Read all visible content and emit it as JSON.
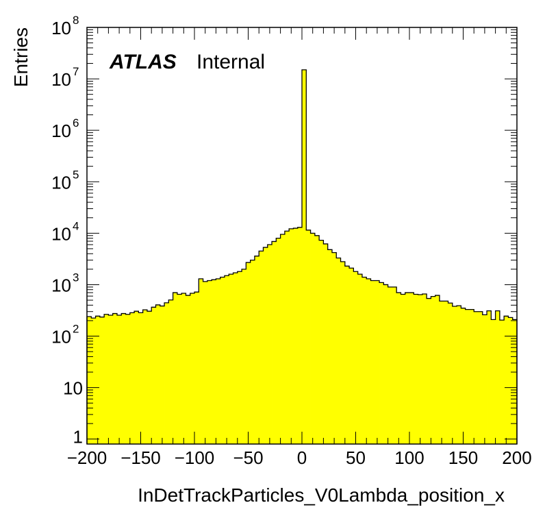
{
  "chart_data": {
    "type": "bar",
    "style": "histogram",
    "xlabel": "InDetTrackParticles_V0Lambda_position_x",
    "ylabel": "Entries",
    "label_bold": "ATLAS",
    "label_status": "Internal",
    "xlim": [
      -200,
      200
    ],
    "ylim": [
      0.8,
      100000000
    ],
    "y_scale": "log",
    "grid": false,
    "fill_color": "#ffff00",
    "line_color": "#000000",
    "x_ticks": [
      "−200",
      "−150",
      "−100",
      "−50",
      "0",
      "50",
      "100",
      "150",
      "200"
    ],
    "y_ticks": [
      {
        "base": "1",
        "exp": ""
      },
      {
        "base": "10",
        "exp": ""
      },
      {
        "base": "10",
        "exp": "2"
      },
      {
        "base": "10",
        "exp": "3"
      },
      {
        "base": "10",
        "exp": "4"
      },
      {
        "base": "10",
        "exp": "5"
      },
      {
        "base": "10",
        "exp": "6"
      },
      {
        "base": "10",
        "exp": "7"
      },
      {
        "base": "10",
        "exp": "8"
      }
    ],
    "bin_width": 4,
    "bin_lows": [
      -200,
      -196,
      -192,
      -188,
      -184,
      -180,
      -176,
      -172,
      -168,
      -164,
      -160,
      -156,
      -152,
      -148,
      -144,
      -140,
      -136,
      -132,
      -128,
      -124,
      -120,
      -116,
      -112,
      -108,
      -104,
      -100,
      -96,
      -92,
      -88,
      -84,
      -80,
      -76,
      -72,
      -68,
      -64,
      -60,
      -56,
      -52,
      -48,
      -44,
      -40,
      -36,
      -32,
      -28,
      -24,
      -20,
      -16,
      -12,
      -8,
      -4,
      0,
      4,
      8,
      12,
      16,
      20,
      24,
      28,
      32,
      36,
      40,
      44,
      48,
      52,
      56,
      60,
      64,
      68,
      72,
      76,
      80,
      84,
      88,
      92,
      96,
      100,
      104,
      108,
      112,
      116,
      120,
      124,
      128,
      132,
      136,
      140,
      144,
      148,
      152,
      156,
      160,
      164,
      168,
      172,
      176,
      180,
      184,
      188,
      192,
      196
    ],
    "values": [
      240,
      225,
      245,
      235,
      265,
      255,
      275,
      255,
      275,
      265,
      285,
      305,
      285,
      325,
      305,
      365,
      405,
      385,
      445,
      505,
      700,
      650,
      680,
      620,
      680,
      720,
      1300,
      1150,
      1200,
      1250,
      1300,
      1400,
      1500,
      1600,
      1700,
      1800,
      2000,
      2700,
      3000,
      3600,
      4500,
      5300,
      6000,
      6900,
      8000,
      9500,
      11000,
      12200,
      12500,
      13000,
      15000000,
      11500,
      10000,
      9000,
      7300,
      6200,
      4800,
      4200,
      3300,
      2800,
      2300,
      2100,
      1800,
      1600,
      1400,
      1300,
      1200,
      1200,
      1100,
      1000,
      900,
      900,
      700,
      650,
      700,
      700,
      650,
      640,
      660,
      540,
      590,
      620,
      480,
      480,
      440,
      380,
      390,
      350,
      330,
      330,
      300,
      300,
      260,
      310,
      210,
      310,
      205,
      245,
      230,
      210
    ]
  }
}
